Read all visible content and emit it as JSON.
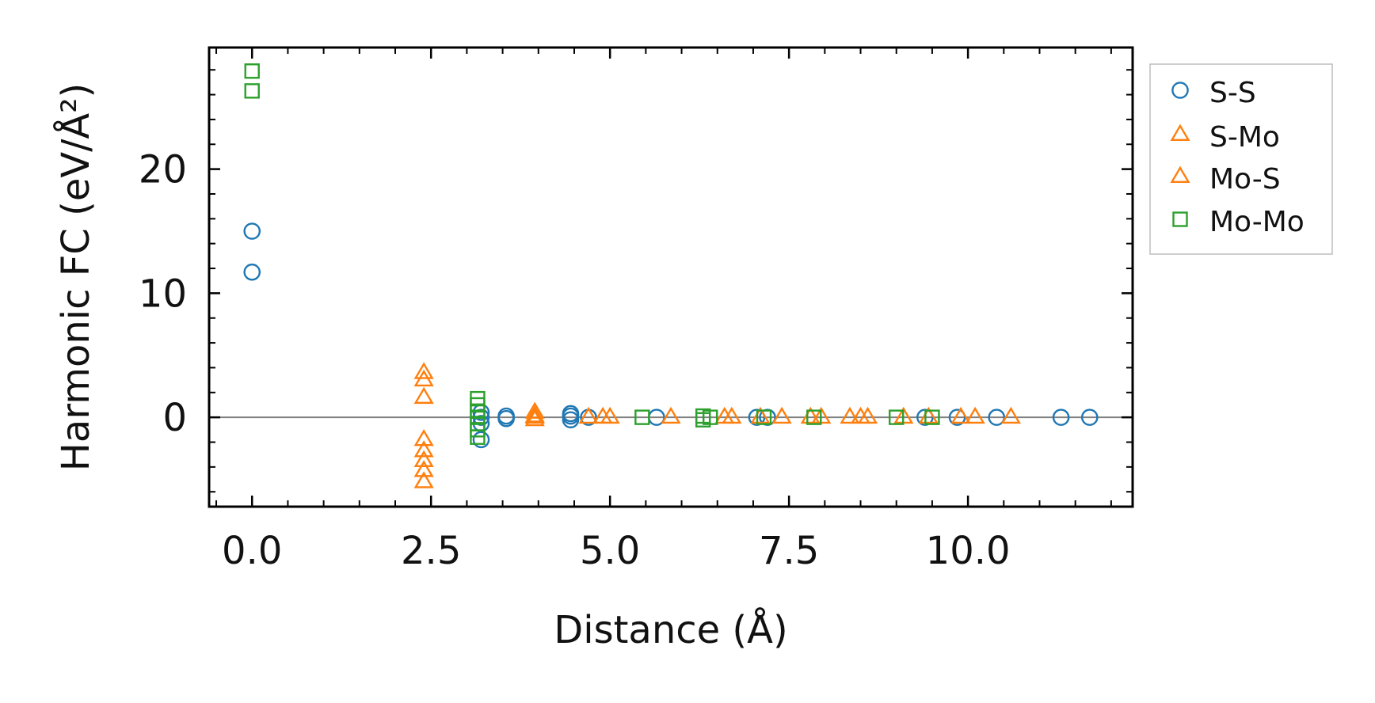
{
  "chart_data": {
    "type": "scatter",
    "title": "",
    "xlabel": "Distance (Å)",
    "ylabel": "Harmonic FC (eV/Å²)",
    "xlim": [
      -0.6,
      12.3
    ],
    "ylim": [
      -7.2,
      29.8
    ],
    "xticks": [
      0.0,
      2.5,
      5.0,
      7.5,
      10.0
    ],
    "xtick_labels": [
      "0.0",
      "2.5",
      "5.0",
      "7.5",
      "10.0"
    ],
    "yticks": [
      0,
      10,
      20
    ],
    "ytick_labels": [
      "0",
      "10",
      "20"
    ],
    "zero_line": true,
    "grid": false,
    "legend_position": "outside-right-top",
    "series": [
      {
        "name": "S-S",
        "marker": "circle",
        "color": "#1f77b4",
        "points": [
          [
            0.0,
            15.0
          ],
          [
            0.0,
            11.7
          ],
          [
            3.2,
            0.4
          ],
          [
            3.2,
            0.0
          ],
          [
            3.2,
            -0.5
          ],
          [
            3.2,
            -1.8
          ],
          [
            3.55,
            0.1
          ],
          [
            3.55,
            -0.1
          ],
          [
            4.45,
            0.3
          ],
          [
            4.45,
            0.1
          ],
          [
            4.45,
            -0.2
          ],
          [
            4.7,
            0.0
          ],
          [
            5.65,
            0.0
          ],
          [
            7.05,
            0.0
          ],
          [
            7.2,
            0.0
          ],
          [
            9.4,
            0.0
          ],
          [
            9.85,
            0.0
          ],
          [
            10.4,
            0.0
          ],
          [
            11.3,
            0.0
          ],
          [
            11.7,
            0.0
          ]
        ]
      },
      {
        "name": "S-Mo",
        "marker": "triangle",
        "color": "#ff7f0e",
        "points": [
          [
            2.4,
            3.6
          ],
          [
            2.4,
            3.0
          ],
          [
            2.4,
            1.6
          ],
          [
            2.4,
            -1.8
          ],
          [
            2.4,
            -2.7
          ],
          [
            2.4,
            -3.5
          ],
          [
            2.4,
            -4.3
          ],
          [
            2.4,
            -5.2
          ],
          [
            3.95,
            0.4
          ],
          [
            3.95,
            0.0
          ],
          [
            3.95,
            -0.2
          ],
          [
            4.7,
            0.0
          ],
          [
            5.0,
            0.0
          ],
          [
            5.85,
            0.0
          ],
          [
            6.7,
            0.0
          ],
          [
            7.4,
            0.0
          ],
          [
            7.95,
            0.0
          ],
          [
            8.35,
            0.0
          ],
          [
            8.6,
            0.0
          ],
          [
            9.1,
            0.0
          ],
          [
            10.1,
            0.0
          ],
          [
            10.6,
            0.0
          ]
        ]
      },
      {
        "name": "Mo-S",
        "marker": "triangle",
        "color": "#ff7f0e",
        "points": [
          [
            3.95,
            0.1
          ],
          [
            4.9,
            0.0
          ],
          [
            6.6,
            0.0
          ],
          [
            7.1,
            0.0
          ],
          [
            7.8,
            0.0
          ],
          [
            8.5,
            0.0
          ],
          [
            9.45,
            0.0
          ],
          [
            9.9,
            0.0
          ]
        ]
      },
      {
        "name": "Mo-Mo",
        "marker": "square",
        "color": "#2ca02c",
        "points": [
          [
            0.0,
            27.9
          ],
          [
            0.0,
            26.3
          ],
          [
            3.15,
            1.5
          ],
          [
            3.15,
            1.0
          ],
          [
            3.15,
            0.5
          ],
          [
            3.15,
            0.0
          ],
          [
            3.15,
            -0.5
          ],
          [
            3.15,
            -1.0
          ],
          [
            3.15,
            -1.6
          ],
          [
            5.45,
            0.0
          ],
          [
            6.3,
            0.1
          ],
          [
            6.3,
            -0.2
          ],
          [
            6.4,
            0.0
          ],
          [
            7.15,
            0.0
          ],
          [
            7.85,
            0.0
          ],
          [
            9.0,
            0.0
          ],
          [
            9.5,
            0.0
          ]
        ]
      }
    ]
  }
}
